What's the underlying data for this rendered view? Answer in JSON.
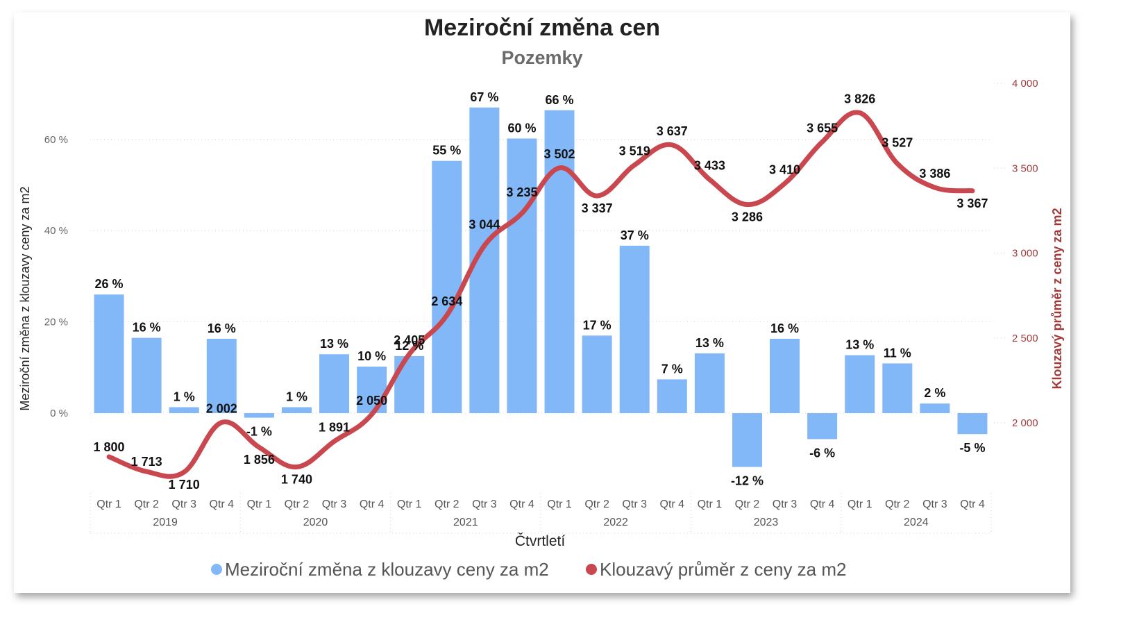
{
  "chart_data": {
    "type": "bar",
    "title": "Meziroční změna cen",
    "subtitle": "Pozemky",
    "xlabel": "Čtvrtletí",
    "ylabel_left": "Meziroční změna z klouzavy ceny za m2",
    "ylabel_right": "Klouzavý průměr z ceny za m2",
    "ylim_left": [
      -20,
      70
    ],
    "ylim_right": [
      1500,
      4000
    ],
    "yticks_left": [
      "0 %",
      "20 %",
      "40 %",
      "60 %"
    ],
    "yticks_right": [
      "2 000",
      "2 500",
      "3 000",
      "3 500",
      "4 000"
    ],
    "grid": true,
    "legend_position": "bottom",
    "categories": [
      "Qtr 1",
      "Qtr 2",
      "Qtr 3",
      "Qtr 4",
      "Qtr 1",
      "Qtr 2",
      "Qtr 3",
      "Qtr 4",
      "Qtr 1",
      "Qtr 2",
      "Qtr 3",
      "Qtr 4",
      "Qtr 1",
      "Qtr 2",
      "Qtr 3",
      "Qtr 4",
      "Qtr 1",
      "Qtr 2",
      "Qtr 3",
      "Qtr 4",
      "Qtr 1",
      "Qtr 2",
      "Qtr 3",
      "Qtr 4"
    ],
    "years": [
      "2019",
      "2020",
      "2021",
      "2022",
      "2023",
      "2024"
    ],
    "series": [
      {
        "name": "Meziroční změna z klouzavy ceny za m2",
        "type": "bar",
        "axis": "left",
        "color": "#82b8f7",
        "values": [
          26,
          16.5,
          1.3,
          16.3,
          -1,
          1.3,
          12.9,
          10.2,
          12.5,
          55.3,
          67,
          60.2,
          66.4,
          17,
          36.7,
          7.4,
          13.1,
          -11.8,
          16.3,
          -5.7,
          12.7,
          10.9,
          2.1,
          -4.6
        ],
        "labels": [
          "26 %",
          "16 %",
          "1 %",
          "16 %",
          "-1 %",
          "1 %",
          "13 %",
          "10 %",
          "12 %",
          "55 %",
          "67 %",
          "60 %",
          "66 %",
          "17 %",
          "37 %",
          "7 %",
          "13 %",
          "-12 %",
          "16 %",
          "-6 %",
          "13 %",
          "11 %",
          "2 %",
          "-5 %"
        ]
      },
      {
        "name": "Klouzavý průměr z ceny za m2",
        "type": "line",
        "axis": "right",
        "color": "#c9474e",
        "values": [
          1800,
          1713,
          1710,
          2002,
          1856,
          1740,
          1891,
          2050,
          2405,
          2634,
          3044,
          3235,
          3502,
          3337,
          3519,
          3637,
          3433,
          3286,
          3410,
          3655,
          3826,
          3527,
          3386,
          3367
        ],
        "labels": [
          "1 800",
          "1 713",
          "1 710",
          "2 002",
          "1 856",
          "1 740",
          "1 891",
          "2 050",
          "2 405",
          "2 634",
          "3 044",
          "3 235",
          "3 502",
          "3 337",
          "3 519",
          "3 637",
          "3 433",
          "3 286",
          "3 410",
          "3 655",
          "3 826",
          "3 527",
          "3 386",
          "3 367"
        ]
      }
    ]
  }
}
